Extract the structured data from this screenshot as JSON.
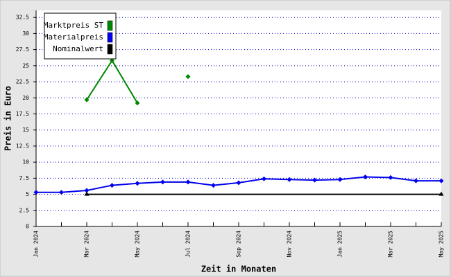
{
  "chart_data": {
    "type": "line",
    "y_label": "Preis in Euro",
    "x_label": "Zeit in Monaten",
    "categories": [
      "Jan 2024",
      null,
      "Mar 2024",
      null,
      "May 2024",
      null,
      "Jul 2024",
      null,
      "Sep 2024",
      null,
      "Nov 2024",
      null,
      "Jan 2025",
      null,
      "Mar 2025",
      null,
      "May 2025"
    ],
    "series": [
      {
        "name": "Marktpreis ST",
        "color": "#008800",
        "values": [
          null,
          null,
          19.7,
          25.8,
          19.2,
          null,
          23.3,
          null,
          null,
          null,
          null,
          null,
          null,
          null,
          null,
          null,
          null
        ]
      },
      {
        "name": "Materialpreis",
        "color": "#0000ee",
        "values": [
          5.3,
          5.3,
          5.6,
          6.4,
          6.7,
          6.9,
          6.9,
          6.4,
          6.8,
          7.4,
          7.3,
          7.2,
          7.3,
          7.7,
          7.6,
          7.1,
          7.1
        ]
      },
      {
        "name": "Nominalwert",
        "color": "#000000",
        "values": [
          null,
          null,
          5,
          5,
          5,
          5,
          5,
          5,
          5,
          5,
          5,
          5,
          5,
          5,
          5,
          5,
          5
        ]
      }
    ],
    "ylim": [
      0,
      33.6
    ],
    "yticks": [
      0,
      2.5,
      5,
      7.5,
      10,
      12.5,
      15,
      17.5,
      20,
      22.5,
      25,
      27.5,
      30,
      32.5
    ],
    "grid": true,
    "legend": "top-left"
  }
}
